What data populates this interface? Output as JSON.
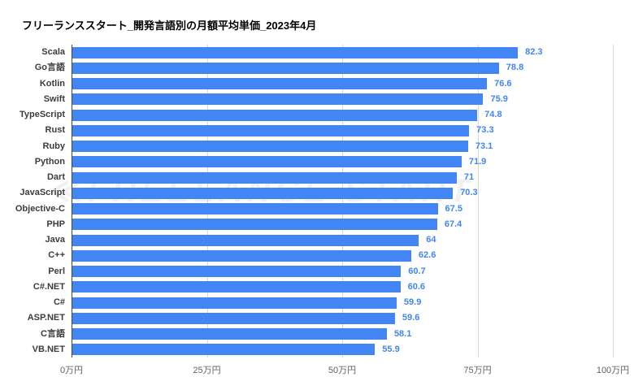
{
  "title": "フリーランススタート_開発言語別の月額平均単価_2023年4月",
  "watermark": "≪FREELANCE START",
  "colors": {
    "bar": "#4285f4",
    "value_label": "#4285f4",
    "category_label": "#3c3c3c",
    "tick_label": "#636363",
    "gridline": "#d9d9d9",
    "axis_line": "#424242",
    "title": "#000000",
    "background": "#ffffff"
  },
  "chart_data": {
    "type": "bar",
    "orientation": "horizontal",
    "title": "フリーランススタート_開発言語別の月額平均単価_2023年4月",
    "categories": [
      "Scala",
      "Go言語",
      "Kotlin",
      "Swift",
      "TypeScript",
      "Rust",
      "Ruby",
      "Python",
      "Dart",
      "JavaScript",
      "Objective-C",
      "PHP",
      "Java",
      "C++",
      "Perl",
      "C#.NET",
      "C#",
      "ASP.NET",
      "C言語",
      "VB.NET"
    ],
    "values": [
      82.3,
      78.8,
      76.6,
      75.9,
      74.8,
      73.3,
      73.1,
      71.9,
      71,
      70.3,
      67.5,
      67.4,
      64,
      62.6,
      60.7,
      60.6,
      59.9,
      59.6,
      58.1,
      55.9
    ],
    "value_labels": [
      "82.3",
      "78.8",
      "76.6",
      "75.9",
      "74.8",
      "73.3",
      "73.1",
      "71.9",
      "71",
      "70.3",
      "67.5",
      "67.4",
      "64",
      "62.6",
      "60.7",
      "60.6",
      "59.9",
      "59.6",
      "58.1",
      "55.9"
    ],
    "x_ticks": [
      "0万円",
      "25万円",
      "50万円",
      "75万円",
      "100万円"
    ],
    "x_tick_values": [
      0,
      25,
      50,
      75,
      100
    ],
    "xlim": [
      0,
      100
    ],
    "unit": "万円",
    "grid": true,
    "legend": "none"
  }
}
